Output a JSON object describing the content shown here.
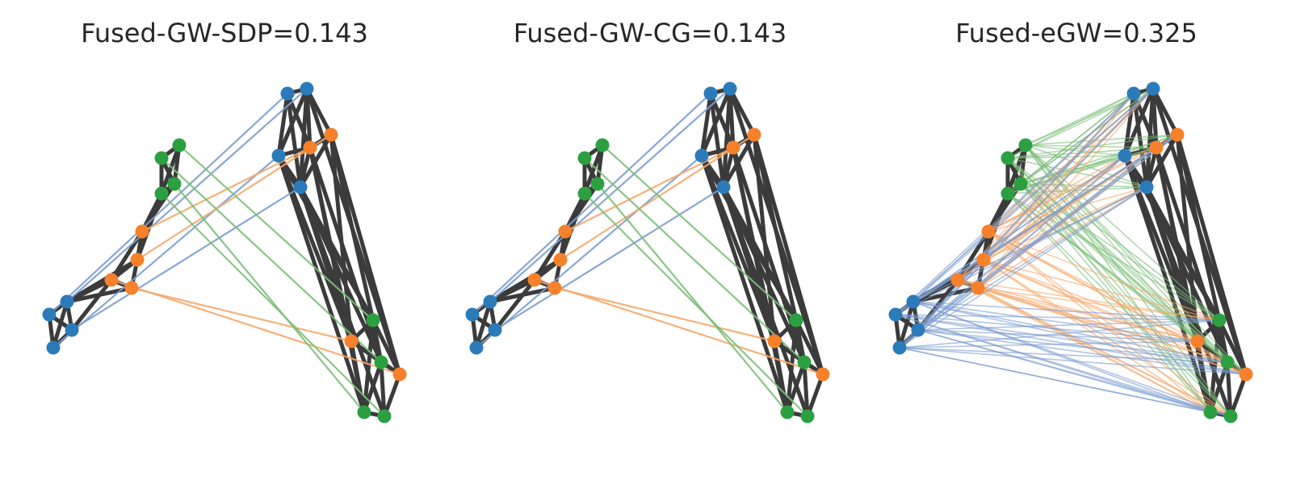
{
  "panels": [
    {
      "title": "Fused-GW-SDP=0.143",
      "coupling": "sparse"
    },
    {
      "title": "Fused-GW-CG=0.143",
      "coupling": "sparse"
    },
    {
      "title": "Fused-eGW=0.325",
      "coupling": "dense"
    }
  ],
  "colors": {
    "blue": "#2b7bba",
    "orange": "#f7812a",
    "green": "#2ca041",
    "edge": "#3b3b3b",
    "match_blue": "#7c9ed0",
    "match_orange": "#f7a86a",
    "match_green": "#7dbf7a"
  },
  "chart_data": {
    "type": "scatter",
    "description_keys": "Each panel shows two graphs (left and right) with colored nodes and matching lines between them.",
    "node_classes": [
      "blue",
      "orange",
      "green"
    ],
    "left_graph": {
      "nodes": [
        {
          "class": "green"
        },
        {
          "class": "green"
        },
        {
          "class": "green"
        },
        {
          "class": "green"
        },
        {
          "class": "orange"
        },
        {
          "class": "orange"
        },
        {
          "class": "orange"
        },
        {
          "class": "orange"
        },
        {
          "class": "blue"
        },
        {
          "class": "blue"
        },
        {
          "class": "blue"
        },
        {
          "class": "blue"
        }
      ]
    },
    "right_graph": {
      "nodes": [
        {
          "class": "blue"
        },
        {
          "class": "blue"
        },
        {
          "class": "blue"
        },
        {
          "class": "blue"
        },
        {
          "class": "orange"
        },
        {
          "class": "orange"
        },
        {
          "class": "orange"
        },
        {
          "class": "orange"
        },
        {
          "class": "green"
        },
        {
          "class": "green"
        },
        {
          "class": "green"
        },
        {
          "class": "green"
        }
      ]
    }
  }
}
